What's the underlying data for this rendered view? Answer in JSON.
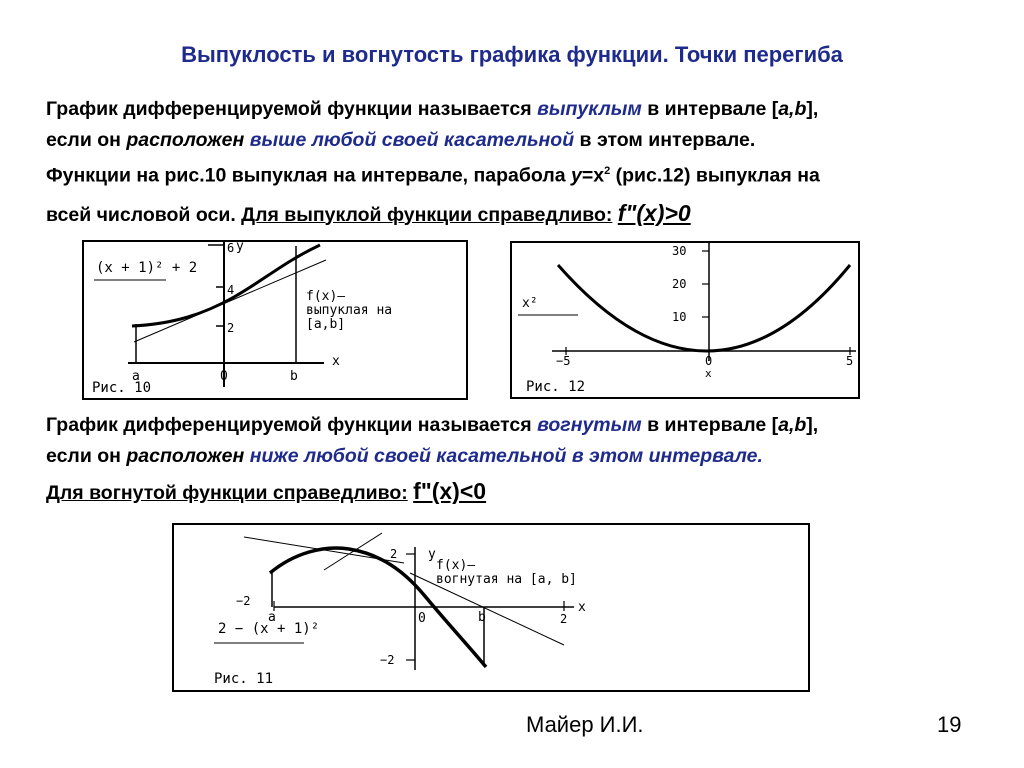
{
  "title": "Выпуклость и вогнутость графика функции. Точки перегиба",
  "convex": {
    "line1_a": "График дифференцируемой функции называется ",
    "line1_hl": "выпуклым",
    "line1_b": " в интервале [",
    "line1_ab": "a,b",
    "line1_c": "],",
    "line2_a": "если он ",
    "line2_it": "расположен",
    "line2_hl": " выше любой своей касательной",
    "line2_b": " в этом интервале.",
    "line3_a": "Функции на рис.10 выпуклая на интервале, парабола ",
    "line3_y": "y",
    "line3_b": "=x",
    "line3_sup": "2",
    "line3_c": " (рис.12) выпуклая на",
    "line4_a": "всей числовой оси. ",
    "line4_u": "Для выпуклой функции справедливо:",
    "line4_formula": "f\"(x)>0"
  },
  "fig10": {
    "formula_label": "(x + 1)² + 2",
    "ticks_y": [
      "6",
      "4",
      "2"
    ],
    "axis_y": "y",
    "axis_x": "x",
    "tick_a": "a",
    "tick_0": "0",
    "tick_b": "b",
    "annotation": [
      "f(x)—",
      "выпуклая на",
      "[a,b]"
    ],
    "caption": "Рис. 10"
  },
  "fig12": {
    "ylabel": "x²",
    "ticks_y": [
      "30",
      "20",
      "10"
    ],
    "ticks_x": [
      "−5",
      "0",
      "5"
    ],
    "xlabel": "x",
    "caption": "Рис. 12"
  },
  "concave": {
    "line1_a": "График дифференцируемой функции называется ",
    "line1_hl": "вогнутым",
    "line1_b": " в интервале [",
    "line1_ab": "a,b",
    "line1_c": "],",
    "line2_a": "если он ",
    "line2_it": "расположен",
    "line2_hl": " ниже любой своей касательной в этом интервале.",
    "line3_u": "Для вогнутой функции справедливо:",
    "line3_formula": "f\"(x)<0"
  },
  "fig11": {
    "ticks_y": [
      "2",
      "−2"
    ],
    "tick_x_left": "−2",
    "tick_x_right": "2",
    "tick_a": "a",
    "tick_0": "0",
    "tick_b": "b",
    "axis_y": "y",
    "axis_x": "x",
    "annotation": [
      "f(x)—",
      "вогнутая на [a, b]"
    ],
    "formula_label": "2 − (x + 1)²",
    "caption": "Рис. 11"
  },
  "footer": {
    "author": "Майер И.И.",
    "page": "19"
  }
}
